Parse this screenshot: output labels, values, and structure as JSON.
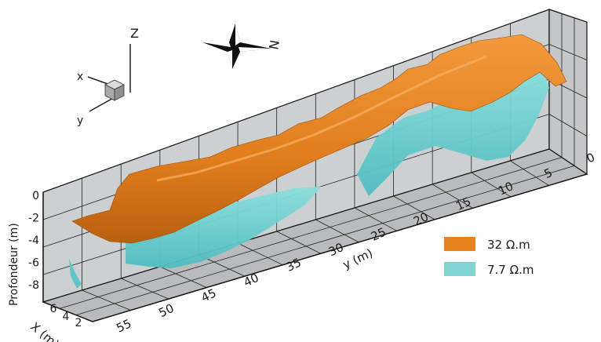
{
  "orientation": {
    "z_label": "Z",
    "x_label": "x",
    "y_label": "y"
  },
  "compass": {
    "north_label": "N"
  },
  "axes": {
    "y_axis": {
      "label": "y (m)",
      "ticks": [
        "0",
        "5",
        "10",
        "15",
        "20",
        "25",
        "30",
        "35",
        "40",
        "45",
        "50",
        "55"
      ]
    },
    "depth_axis": {
      "label": "Profondeur (m)",
      "ticks": [
        "0",
        "-2",
        "-4",
        "-6",
        "-8"
      ]
    },
    "x_axis": {
      "label": "X (m)",
      "ticks": [
        "6",
        "4",
        "2"
      ]
    }
  },
  "legend": [
    {
      "label": "32 Ω.m",
      "color": "#e6821e"
    },
    {
      "label": "7.7 Ω.m",
      "color": "#7fd3d0"
    }
  ],
  "colors": {
    "resistive_body": "#e6821e",
    "conductive_body": "#6fcfcf",
    "wall": "#c9cbcc",
    "floor": "#bfc1c2",
    "grid": "#222222"
  }
}
